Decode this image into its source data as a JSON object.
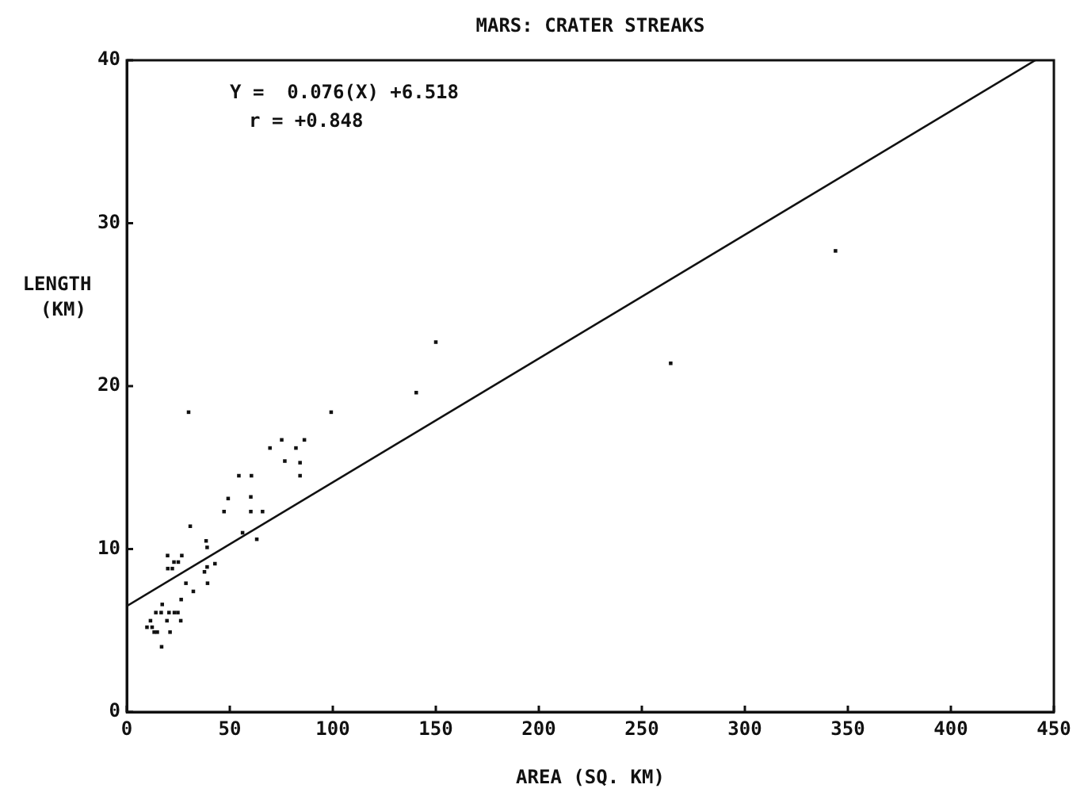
{
  "chart_data": {
    "type": "scatter",
    "title": "MARS: CRATER STREAKS",
    "xlabel": "AREA (SQ. KM)",
    "ylabel": "LENGTH (KM)",
    "annotations": [
      "Y =  0.076(X) +6.518",
      "r = +0.848"
    ],
    "xlim": [
      0,
      450
    ],
    "xticks": [
      0,
      50,
      100,
      150,
      200,
      250,
      300,
      350,
      400,
      450
    ],
    "ylim": [
      0,
      40
    ],
    "yticks": [
      0,
      10,
      20,
      30,
      40
    ],
    "grid": false,
    "marker": "square",
    "series": [
      {
        "color": "#111111",
        "x": [
          30.0,
          99.2,
          69.5,
          75.2,
          82.1,
          86.2,
          76.7,
          84.1,
          84.1,
          54.4,
          60.5,
          49.2,
          60.2,
          47.2,
          60.2,
          65.9,
          30.8,
          38.5,
          39,
          56.2,
          63.1,
          19.8,
          26.7,
          22.9,
          25.0,
          19.9,
          22.1,
          42.8,
          39,
          37.7,
          39.2,
          28.7,
          32.3,
          26.4,
          17.2,
          14.1,
          16.7,
          20.5,
          23.1,
          24.8,
          19.5,
          26.2,
          11.5,
          12.3,
          9.8,
          13.3,
          14.8,
          21,
          16.9,
          150,
          140.5,
          264,
          344
        ],
        "values": [
          18.4,
          18.4,
          16.2,
          16.7,
          16.2,
          16.7,
          15.4,
          15.3,
          14.5,
          14.5,
          14.5,
          13.1,
          13.2,
          12.3,
          12.3,
          12.3,
          11.4,
          10.5,
          10.1,
          11.0,
          10.6,
          9.6,
          9.6,
          9.2,
          9.2,
          8.8,
          8.8,
          9.1,
          8.9,
          8.6,
          7.9,
          7.9,
          7.4,
          6.9,
          6.6,
          6.1,
          6.1,
          6.1,
          6.1,
          6.1,
          5.6,
          5.6,
          5.6,
          5.2,
          5.2,
          4.9,
          4.9,
          4.9,
          4.0,
          22.7,
          19.6,
          21.4,
          28.3
        ]
      },
      {
        "type": "line",
        "marker": "none",
        "line_style": "solid",
        "color": "#111111",
        "x": [
          0,
          441
        ],
        "values": [
          6.5,
          40.0
        ]
      }
    ]
  }
}
